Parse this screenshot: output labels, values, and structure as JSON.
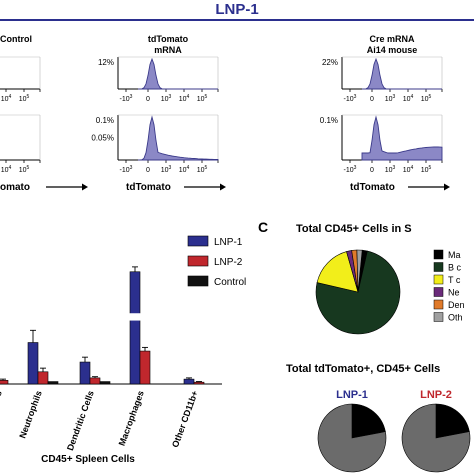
{
  "header": {
    "title": "LNP-1",
    "title_color": "#2b2f8e"
  },
  "flow": {
    "columns": [
      {
        "heading": [
          "Control"
        ],
        "row1_label": "",
        "row2_label": "",
        "tail_mass": 0
      },
      {
        "heading": [
          "tdTomato",
          "mRNA"
        ],
        "row1_label": "12%",
        "row2_label": "0.1%",
        "row2_mid_label": "0.05%",
        "tail_mass": 1
      },
      {
        "heading": [
          "Cre mRNA",
          "Ai14 mouse"
        ],
        "row1_label": "22%",
        "row2_label": "0.1%",
        "row2_mid_label": "",
        "tail_mass": 2
      }
    ],
    "tick_labels": [
      "-10",
      "0",
      "10",
      "10",
      "10",
      "10"
    ],
    "tick_exponents": [
      "3",
      "",
      "3",
      "4",
      "5",
      ""
    ],
    "xlabel": "tdTomato",
    "xlabel_fragment": "omato",
    "fill_color": "#8b88c6",
    "stroke_color": "#3b3a8a"
  },
  "panel_c": {
    "letter": "C",
    "pie_title": "Total CD45+ Cells in S",
    "pie_legend": [
      "Ma",
      "B c",
      "T c",
      "Ne",
      "Den",
      "Oth"
    ],
    "bottom_title": "Total tdTomato+, CD45+ Cells",
    "small_pies": [
      {
        "label": "LNP-1",
        "color": "#2b2f8e"
      },
      {
        "label": "LNP-2",
        "color": "#c0272d"
      }
    ]
  },
  "chart_data": {
    "type": "bar",
    "xlabel": "CD45+ Spleen Cells",
    "categories": [
      "ls",
      "Neutrophils",
      "Dendritic Cells",
      "Macrophages",
      "Other CD11b+"
    ],
    "series": [
      {
        "name": "LNP-1",
        "color": "#2b2f8e",
        "values": [
          0.0,
          0.34,
          0.18,
          0.92,
          0.04
        ],
        "errors": [
          0.0,
          0.1,
          0.04,
          0.04,
          0.01
        ]
      },
      {
        "name": "LNP-2",
        "color": "#c0272d",
        "values": [
          0.03,
          0.1,
          0.05,
          0.27,
          0.015
        ],
        "errors": [
          0.01,
          0.03,
          0.01,
          0.03,
          0.005
        ]
      },
      {
        "name": "Control",
        "color": "#111111",
        "values": [
          0.0,
          0.02,
          0.02,
          0.0,
          0.0
        ],
        "errors": [
          0,
          0,
          0,
          0,
          0
        ]
      }
    ],
    "axis_break": [
      0.52,
      0.58
    ],
    "legend_position": "top-right",
    "pies": [
      {
        "title": "Total CD45+ Cells in S",
        "slices": [
          {
            "label": "Ma",
            "value": 0.02,
            "color": "#000000"
          },
          {
            "label": "B c",
            "value": 0.75,
            "color": "#17381f"
          },
          {
            "label": "T c",
            "value": 0.17,
            "color": "#f2ee1a"
          },
          {
            "label": "Ne",
            "value": 0.02,
            "color": "#6a2a7a"
          },
          {
            "label": "Den",
            "value": 0.02,
            "color": "#e07a2a"
          },
          {
            "label": "Oth",
            "value": 0.02,
            "color": "#a0a0a0"
          }
        ]
      },
      {
        "title": "LNP-1",
        "slices": [
          {
            "label": "black",
            "value": 0.22,
            "color": "#000000"
          },
          {
            "label": "grey",
            "value": 0.78,
            "color": "#6b6b6b"
          }
        ]
      },
      {
        "title": "LNP-2",
        "slices": [
          {
            "label": "black",
            "value": 0.22,
            "color": "#000000"
          },
          {
            "label": "grey",
            "value": 0.78,
            "color": "#6b6b6b"
          }
        ]
      }
    ]
  }
}
